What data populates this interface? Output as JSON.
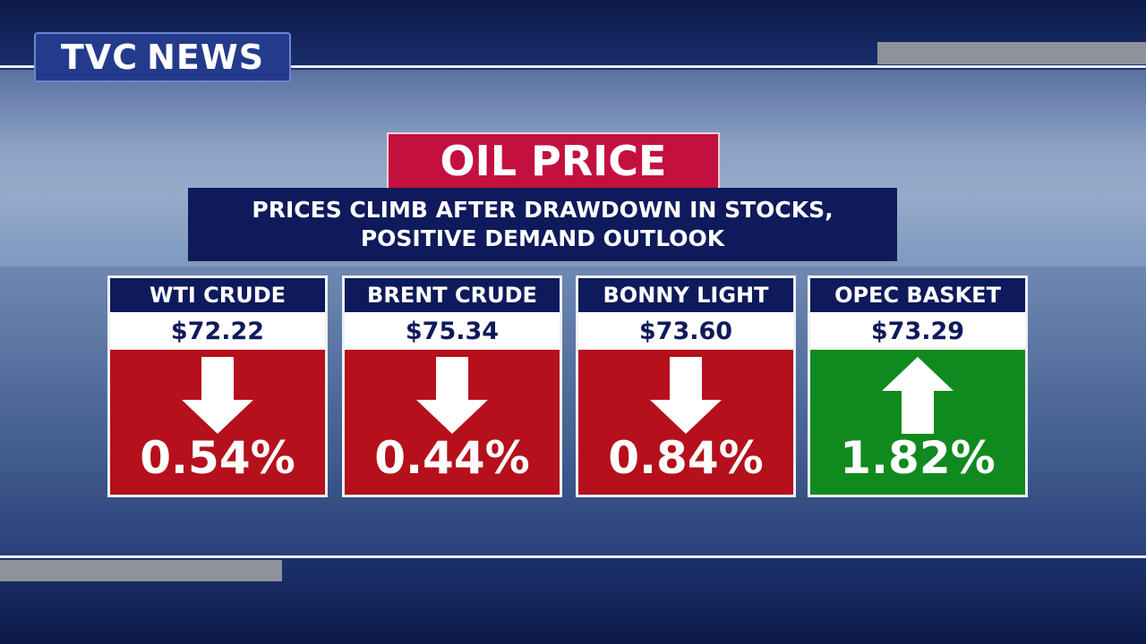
{
  "logo": {
    "text1": "TVC",
    "text2": "NEWS"
  },
  "header": {
    "title": "OIL PRICE",
    "subtitle": [
      "PRICES CLIMB AFTER DRAWDOWN IN STOCKS,",
      "POSITIVE DEMAND OUTLOOK"
    ]
  },
  "cards": [
    {
      "name": "WTI CRUDE",
      "price": "$72.22",
      "change": "0.54%",
      "direction": "down",
      "color": "#b5101b"
    },
    {
      "name": "BRENT CRUDE",
      "price": "$75.34",
      "change": "0.44%",
      "direction": "down",
      "color": "#b5101b"
    },
    {
      "name": "BONNY LIGHT",
      "price": "$73.60",
      "change": "0.84%",
      "direction": "down",
      "color": "#b5101b"
    },
    {
      "name": "OPEC BASKET",
      "price": "$73.29",
      "change": "1.82%",
      "direction": "up",
      "color": "#108a1e"
    }
  ]
}
